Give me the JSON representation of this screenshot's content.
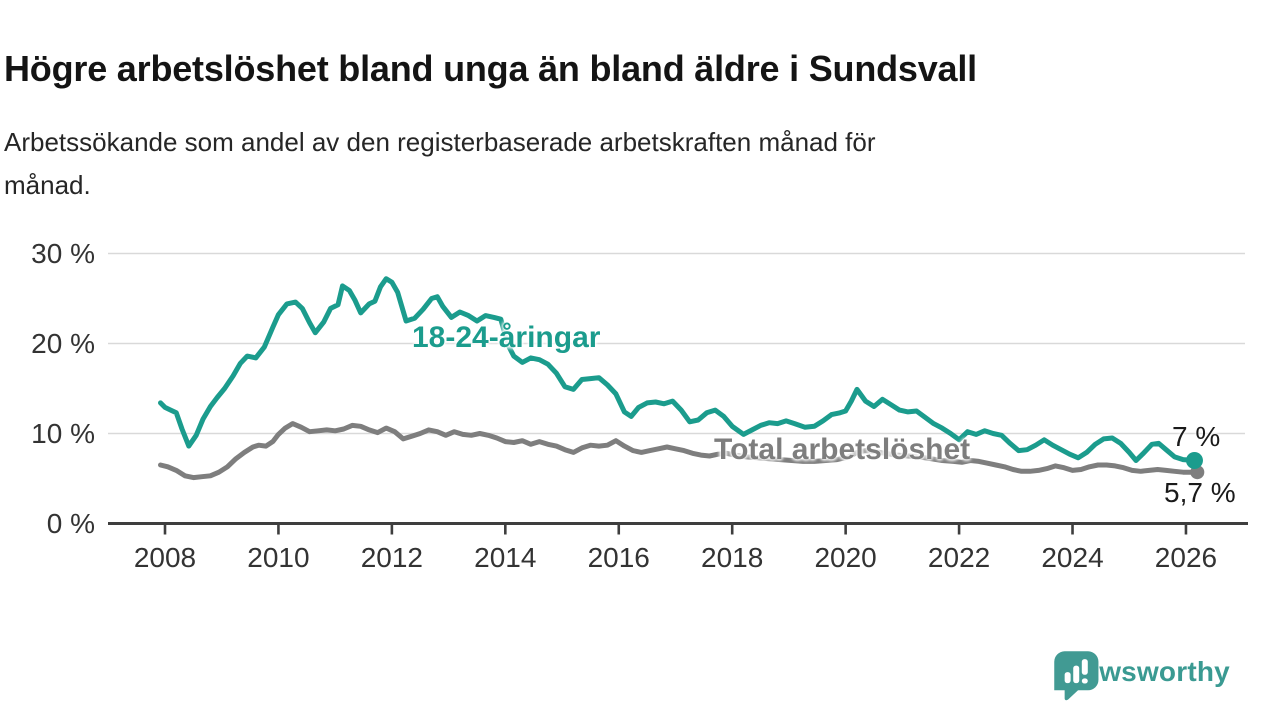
{
  "header": {
    "title": "Högre arbetslöshet bland unga än bland äldre i Sundsvall",
    "subtitle_line1": "Arbetssökande som andel av den registerbaserade arbetskraften månad för",
    "subtitle_line2": "månad."
  },
  "chart_data": {
    "type": "line",
    "title": "Högre arbetslöshet bland unga än bland äldre i Sundsvall",
    "xlabel": "",
    "ylabel": "Arbetssökande som andel av den registerbaserade arbetskraften",
    "x_range": [
      2007.9,
      2026.2
    ],
    "ylim": [
      0,
      30
    ],
    "grid": "horizontal",
    "legend_position": "inline-labels",
    "x_axis": {
      "ticks": [
        2008,
        2010,
        2012,
        2014,
        2016,
        2018,
        2020,
        2022,
        2024,
        2026
      ]
    },
    "y_axis": {
      "ticks": [
        {
          "value": 0,
          "label": "0 %"
        },
        {
          "value": 10,
          "label": "10 %"
        },
        {
          "value": 20,
          "label": "20 %"
        },
        {
          "value": 30,
          "label": "30 %"
        }
      ]
    },
    "style": {
      "young_color": "#1b9c8d",
      "total_color": "#7e7e7e",
      "grid_color": "#d9d9d9",
      "axis_color": "#3e3e3e",
      "label_color": "#333333"
    },
    "series": [
      {
        "name": "18-24-åringar",
        "color": "#1b9c8d",
        "end_label": "7 %",
        "end_value": 7.0,
        "points": [
          [
            2007.92,
            13.4
          ],
          [
            2008.0,
            12.9
          ],
          [
            2008.1,
            12.6
          ],
          [
            2008.2,
            12.3
          ],
          [
            2008.3,
            10.5
          ],
          [
            2008.42,
            8.6
          ],
          [
            2008.55,
            9.8
          ],
          [
            2008.67,
            11.6
          ],
          [
            2008.8,
            13.0
          ],
          [
            2008.92,
            14.0
          ],
          [
            2009.05,
            15.0
          ],
          [
            2009.2,
            16.4
          ],
          [
            2009.33,
            17.8
          ],
          [
            2009.45,
            18.6
          ],
          [
            2009.6,
            18.4
          ],
          [
            2009.75,
            19.6
          ],
          [
            2009.9,
            21.8
          ],
          [
            2010.0,
            23.2
          ],
          [
            2010.15,
            24.4
          ],
          [
            2010.3,
            24.6
          ],
          [
            2010.42,
            23.9
          ],
          [
            2010.55,
            22.3
          ],
          [
            2010.65,
            21.2
          ],
          [
            2010.8,
            22.4
          ],
          [
            2010.92,
            23.9
          ],
          [
            2011.05,
            24.3
          ],
          [
            2011.13,
            26.4
          ],
          [
            2011.25,
            25.9
          ],
          [
            2011.35,
            24.8
          ],
          [
            2011.45,
            23.4
          ],
          [
            2011.6,
            24.4
          ],
          [
            2011.7,
            24.7
          ],
          [
            2011.8,
            26.3
          ],
          [
            2011.9,
            27.2
          ],
          [
            2012.0,
            26.8
          ],
          [
            2012.1,
            25.7
          ],
          [
            2012.25,
            22.5
          ],
          [
            2012.4,
            22.8
          ],
          [
            2012.55,
            23.8
          ],
          [
            2012.7,
            25.0
          ],
          [
            2012.8,
            25.2
          ],
          [
            2012.9,
            24.1
          ],
          [
            2013.05,
            22.9
          ],
          [
            2013.2,
            23.5
          ],
          [
            2013.35,
            23.1
          ],
          [
            2013.5,
            22.5
          ],
          [
            2013.65,
            23.1
          ],
          [
            2013.8,
            22.9
          ],
          [
            2013.92,
            22.7
          ],
          [
            2014.05,
            19.8
          ],
          [
            2014.15,
            18.6
          ],
          [
            2014.3,
            17.9
          ],
          [
            2014.45,
            18.4
          ],
          [
            2014.6,
            18.2
          ],
          [
            2014.75,
            17.7
          ],
          [
            2014.9,
            16.7
          ],
          [
            2015.05,
            15.2
          ],
          [
            2015.2,
            14.9
          ],
          [
            2015.35,
            16.0
          ],
          [
            2015.5,
            16.1
          ],
          [
            2015.65,
            16.2
          ],
          [
            2015.8,
            15.4
          ],
          [
            2015.95,
            14.4
          ],
          [
            2016.1,
            12.4
          ],
          [
            2016.22,
            11.9
          ],
          [
            2016.35,
            12.9
          ],
          [
            2016.5,
            13.4
          ],
          [
            2016.65,
            13.5
          ],
          [
            2016.8,
            13.3
          ],
          [
            2016.95,
            13.6
          ],
          [
            2017.1,
            12.6
          ],
          [
            2017.25,
            11.3
          ],
          [
            2017.4,
            11.5
          ],
          [
            2017.55,
            12.3
          ],
          [
            2017.7,
            12.6
          ],
          [
            2017.85,
            11.9
          ],
          [
            2018.0,
            10.8
          ],
          [
            2018.2,
            9.9
          ],
          [
            2018.35,
            10.4
          ],
          [
            2018.5,
            10.9
          ],
          [
            2018.65,
            11.2
          ],
          [
            2018.8,
            11.1
          ],
          [
            2018.95,
            11.4
          ],
          [
            2019.1,
            11.1
          ],
          [
            2019.28,
            10.7
          ],
          [
            2019.45,
            10.8
          ],
          [
            2019.6,
            11.4
          ],
          [
            2019.75,
            12.1
          ],
          [
            2019.9,
            12.3
          ],
          [
            2020.0,
            12.5
          ],
          [
            2020.1,
            13.6
          ],
          [
            2020.2,
            14.9
          ],
          [
            2020.35,
            13.6
          ],
          [
            2020.5,
            13.0
          ],
          [
            2020.65,
            13.8
          ],
          [
            2020.8,
            13.2
          ],
          [
            2020.95,
            12.6
          ],
          [
            2021.1,
            12.4
          ],
          [
            2021.25,
            12.5
          ],
          [
            2021.4,
            11.8
          ],
          [
            2021.55,
            11.1
          ],
          [
            2021.7,
            10.6
          ],
          [
            2021.85,
            10.0
          ],
          [
            2022.0,
            9.3
          ],
          [
            2022.15,
            10.2
          ],
          [
            2022.3,
            9.9
          ],
          [
            2022.45,
            10.3
          ],
          [
            2022.6,
            10.0
          ],
          [
            2022.75,
            9.8
          ],
          [
            2022.9,
            8.9
          ],
          [
            2023.05,
            8.1
          ],
          [
            2023.2,
            8.2
          ],
          [
            2023.35,
            8.7
          ],
          [
            2023.5,
            9.3
          ],
          [
            2023.65,
            8.7
          ],
          [
            2023.8,
            8.2
          ],
          [
            2023.95,
            7.7
          ],
          [
            2024.1,
            7.3
          ],
          [
            2024.25,
            7.9
          ],
          [
            2024.4,
            8.8
          ],
          [
            2024.55,
            9.4
          ],
          [
            2024.7,
            9.5
          ],
          [
            2024.85,
            8.9
          ],
          [
            2025.0,
            7.9
          ],
          [
            2025.12,
            7.0
          ],
          [
            2025.25,
            7.8
          ],
          [
            2025.4,
            8.8
          ],
          [
            2025.52,
            8.9
          ],
          [
            2025.65,
            8.2
          ],
          [
            2025.8,
            7.4
          ],
          [
            2025.95,
            7.1
          ],
          [
            2026.15,
            7.0
          ]
        ]
      },
      {
        "name": "Total arbetslöshet",
        "color": "#7e7e7e",
        "end_label": "5,7 %",
        "end_value": 5.7,
        "points": [
          [
            2007.92,
            6.5
          ],
          [
            2008.05,
            6.3
          ],
          [
            2008.2,
            5.9
          ],
          [
            2008.35,
            5.3
          ],
          [
            2008.5,
            5.1
          ],
          [
            2008.65,
            5.2
          ],
          [
            2008.8,
            5.3
          ],
          [
            2008.95,
            5.7
          ],
          [
            2009.1,
            6.3
          ],
          [
            2009.25,
            7.2
          ],
          [
            2009.4,
            7.9
          ],
          [
            2009.55,
            8.5
          ],
          [
            2009.65,
            8.7
          ],
          [
            2009.78,
            8.6
          ],
          [
            2009.9,
            9.1
          ],
          [
            2010.0,
            9.9
          ],
          [
            2010.12,
            10.6
          ],
          [
            2010.25,
            11.1
          ],
          [
            2010.4,
            10.7
          ],
          [
            2010.55,
            10.2
          ],
          [
            2010.7,
            10.3
          ],
          [
            2010.85,
            10.4
          ],
          [
            2011.0,
            10.3
          ],
          [
            2011.15,
            10.5
          ],
          [
            2011.3,
            10.9
          ],
          [
            2011.45,
            10.8
          ],
          [
            2011.6,
            10.4
          ],
          [
            2011.75,
            10.1
          ],
          [
            2011.9,
            10.6
          ],
          [
            2012.05,
            10.2
          ],
          [
            2012.2,
            9.4
          ],
          [
            2012.35,
            9.7
          ],
          [
            2012.5,
            10.0
          ],
          [
            2012.65,
            10.4
          ],
          [
            2012.8,
            10.2
          ],
          [
            2012.95,
            9.8
          ],
          [
            2013.1,
            10.2
          ],
          [
            2013.25,
            9.9
          ],
          [
            2013.4,
            9.8
          ],
          [
            2013.55,
            10.0
          ],
          [
            2013.7,
            9.8
          ],
          [
            2013.85,
            9.5
          ],
          [
            2014.0,
            9.1
          ],
          [
            2014.15,
            9.0
          ],
          [
            2014.3,
            9.2
          ],
          [
            2014.45,
            8.8
          ],
          [
            2014.6,
            9.1
          ],
          [
            2014.75,
            8.8
          ],
          [
            2014.9,
            8.6
          ],
          [
            2015.05,
            8.2
          ],
          [
            2015.2,
            7.9
          ],
          [
            2015.35,
            8.4
          ],
          [
            2015.5,
            8.7
          ],
          [
            2015.65,
            8.6
          ],
          [
            2015.8,
            8.7
          ],
          [
            2015.95,
            9.2
          ],
          [
            2016.1,
            8.6
          ],
          [
            2016.25,
            8.1
          ],
          [
            2016.4,
            7.9
          ],
          [
            2016.55,
            8.1
          ],
          [
            2016.7,
            8.3
          ],
          [
            2016.85,
            8.5
          ],
          [
            2017.0,
            8.3
          ],
          [
            2017.15,
            8.1
          ],
          [
            2017.3,
            7.8
          ],
          [
            2017.45,
            7.6
          ],
          [
            2017.6,
            7.5
          ],
          [
            2017.75,
            7.7
          ],
          [
            2017.9,
            7.8
          ],
          [
            2018.05,
            7.6
          ],
          [
            2018.25,
            7.4
          ],
          [
            2018.45,
            7.3
          ],
          [
            2018.65,
            7.2
          ],
          [
            2018.85,
            7.1
          ],
          [
            2019.05,
            7.0
          ],
          [
            2019.25,
            6.9
          ],
          [
            2019.45,
            6.9
          ],
          [
            2019.65,
            7.0
          ],
          [
            2019.85,
            7.1
          ],
          [
            2020.05,
            7.4
          ],
          [
            2020.2,
            7.9
          ],
          [
            2020.35,
            8.1
          ],
          [
            2020.5,
            8.0
          ],
          [
            2020.7,
            7.8
          ],
          [
            2020.9,
            7.6
          ],
          [
            2021.1,
            7.5
          ],
          [
            2021.3,
            7.4
          ],
          [
            2021.5,
            7.2
          ],
          [
            2021.7,
            7.0
          ],
          [
            2021.9,
            6.9
          ],
          [
            2022.05,
            6.8
          ],
          [
            2022.2,
            7.0
          ],
          [
            2022.35,
            6.9
          ],
          [
            2022.5,
            6.7
          ],
          [
            2022.65,
            6.5
          ],
          [
            2022.8,
            6.3
          ],
          [
            2022.95,
            6.0
          ],
          [
            2023.1,
            5.8
          ],
          [
            2023.25,
            5.8
          ],
          [
            2023.4,
            5.9
          ],
          [
            2023.55,
            6.1
          ],
          [
            2023.7,
            6.4
          ],
          [
            2023.85,
            6.2
          ],
          [
            2024.0,
            5.9
          ],
          [
            2024.15,
            6.0
          ],
          [
            2024.3,
            6.3
          ],
          [
            2024.45,
            6.5
          ],
          [
            2024.6,
            6.5
          ],
          [
            2024.75,
            6.4
          ],
          [
            2024.9,
            6.2
          ],
          [
            2025.05,
            5.9
          ],
          [
            2025.2,
            5.8
          ],
          [
            2025.35,
            5.9
          ],
          [
            2025.5,
            6.0
          ],
          [
            2025.65,
            5.9
          ],
          [
            2025.8,
            5.8
          ],
          [
            2025.95,
            5.7
          ],
          [
            2026.2,
            5.7
          ]
        ]
      }
    ]
  },
  "annotations": {
    "young_label": "18-24-åringar",
    "total_label": "Total arbetslöshet",
    "young_end": "7 %",
    "total_end": "5,7 %"
  },
  "branding": {
    "name": "Newsworthy",
    "color": "#3a9a92"
  }
}
